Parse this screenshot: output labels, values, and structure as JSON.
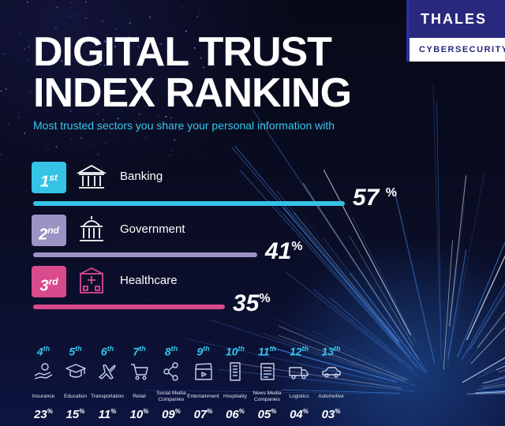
{
  "brand": {
    "name": "THALES",
    "division": "CYBERSECURITY"
  },
  "header": {
    "title_line1": "DIGITAL TRUST",
    "title_line2": "INDEX RANKING",
    "subtitle": "Most trusted sectors you share your personal information with"
  },
  "colors": {
    "accent_cyan": "#39c6ec",
    "banking": "#35c3e6",
    "government": "#9a93c4",
    "healthcare": "#d94a8c"
  },
  "chart_data": {
    "type": "bar",
    "title": "DIGITAL TRUST INDEX RANKING",
    "subtitle": "Most trusted sectors you share your personal information with",
    "unit": "%",
    "xlim": [
      0,
      100
    ],
    "top3": [
      {
        "num": "1",
        "suffix": "st",
        "label": "Banking",
        "value": 57,
        "icon": "bank-icon"
      },
      {
        "num": "2",
        "suffix": "nd",
        "label": "Government",
        "value": 41,
        "icon": "government-building-icon"
      },
      {
        "num": "3",
        "suffix": "rd",
        "label": "Healthcare",
        "value": 35,
        "icon": "hospital-icon"
      }
    ],
    "others": [
      {
        "num": "4",
        "suffix": "th",
        "label": "Insurance",
        "pct": "23",
        "value": 23,
        "icon": "hand-coin-icon"
      },
      {
        "num": "5",
        "suffix": "th",
        "label": "Education",
        "pct": "15",
        "value": 15,
        "icon": "graduation-cap-icon"
      },
      {
        "num": "6",
        "suffix": "th",
        "label": "Transportation",
        "pct": "11",
        "value": 11,
        "icon": "airplane-icon"
      },
      {
        "num": "7",
        "suffix": "th",
        "label": "Retail",
        "pct": "10",
        "value": 10,
        "icon": "shopping-cart-icon"
      },
      {
        "num": "8",
        "suffix": "th",
        "label": "Social Media Companies",
        "pct": "09",
        "value": 9,
        "icon": "share-icon"
      },
      {
        "num": "9",
        "suffix": "th",
        "label": "Entertainment",
        "pct": "07",
        "value": 7,
        "icon": "clapperboard-icon"
      },
      {
        "num": "10",
        "suffix": "th",
        "label": "Hospitality",
        "pct": "06",
        "value": 6,
        "icon": "hotel-building-icon"
      },
      {
        "num": "11",
        "suffix": "th",
        "label": "News Media Companies",
        "pct": "05",
        "value": 5,
        "icon": "newspaper-icon"
      },
      {
        "num": "12",
        "suffix": "th",
        "label": "Logistics",
        "pct": "04",
        "value": 4,
        "icon": "truck-icon"
      },
      {
        "num": "13",
        "suffix": "th",
        "label": "Automotive",
        "pct": "03",
        "value": 3,
        "icon": "car-icon"
      }
    ]
  }
}
